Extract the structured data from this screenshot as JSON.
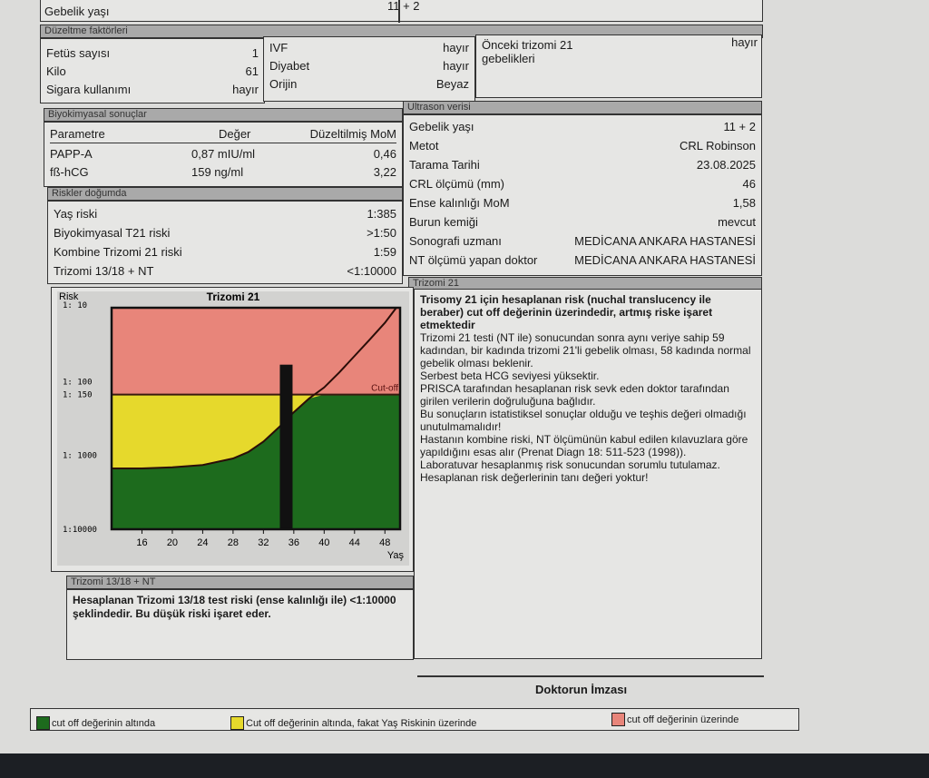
{
  "top": {
    "label": "Gebelik yaşı",
    "value": "11 + 2"
  },
  "factors": {
    "title": "Düzeltme faktörleri",
    "col1": [
      {
        "label": "Fetüs sayısı",
        "value": "1"
      },
      {
        "label": "Kilo",
        "value": "61"
      },
      {
        "label": "Sigara kullanımı",
        "value": "hayır"
      }
    ],
    "col2": [
      {
        "label": "IVF",
        "value": "hayır"
      },
      {
        "label": "Diyabet",
        "value": "hayır"
      },
      {
        "label": "Orijin",
        "value": "Beyaz"
      }
    ],
    "col3": {
      "label": "Önceki trizomi 21 gebelikleri",
      "value": "hayır"
    }
  },
  "biochem": {
    "title": "Biyokimyasal sonuçlar",
    "headers": [
      "Parametre",
      "Değer",
      "Düzeltilmiş MoM"
    ],
    "rows": [
      [
        "PAPP-A",
        "0,87 mIU/ml",
        "0,46"
      ],
      [
        "fß-hCG",
        "159 ng/ml",
        "3,22"
      ]
    ]
  },
  "risks": {
    "title": "Riskler doğumda",
    "rows": [
      {
        "label": "Yaş riski",
        "value": "1:385"
      },
      {
        "label": "Biyokimyasal T21 riski",
        "value": ">1:50"
      },
      {
        "label": "Kombine Trizomi 21 riski",
        "value": "1:59"
      },
      {
        "label": "Trizomi 13/18 + NT",
        "value": "<1:10000"
      }
    ]
  },
  "ultrasound": {
    "title": "Ultrason verisi",
    "rows": [
      {
        "label": "Gebelik yaşı",
        "value": "11 + 2"
      },
      {
        "label": "Metot",
        "value": "CRL Robinson"
      },
      {
        "label": "Tarama Tarihi",
        "value": "23.08.2025"
      },
      {
        "label": "CRL ölçümü (mm)",
        "value": "46"
      },
      {
        "label": "Ense kalınlığı MoM",
        "value": "1,58"
      },
      {
        "label": "Burun kemiği",
        "value": "mevcut"
      },
      {
        "label": "Sonografi uzmanı",
        "value": "MEDİCANA ANKARA HASTANESİ"
      },
      {
        "label": "NT ölçümü yapan doktor",
        "value": "MEDİCANA ANKARA HASTANESİ"
      }
    ]
  },
  "t21": {
    "title": "Trizomi 21",
    "headline": "Trisomy 21 için hesaplanan risk (nuchal translucency ile beraber) cut off değerinin üzerindedir, artmış riske işaret etmektedir",
    "paragraphs": [
      "Trizomi 21 testi (NT ile) sonucundan sonra aynı veriye sahip 59 kadından, bir kadında trizomi 21'li gebelik olması, 58 kadında normal gebelik olması beklenir.",
      "Serbest beta HCG seviyesi yüksektir.",
      "PRISCA tarafından hesaplanan risk sevk eden doktor tarafından girilen verilerin doğruluğuna bağlıdır.",
      "Bu sonuçların istatistiksel sonuçlar olduğu ve teşhis değeri olmadığı unutulmamalıdır!",
      "Hastanın kombine riski, NT ölçümünün kabul edilen kılavuzlara göre yapıldığını esas alır (Prenat Diagn 18: 511-523 (1998)).",
      "Laboratuvar hesaplanmış risk sonucundan sorumlu tutulamaz. Hesaplanan risk değerlerinin tanı değeri yoktur!"
    ]
  },
  "chart_data": {
    "type": "area",
    "title": "Trizomi 21",
    "ylabel": "Risk",
    "xlabel": "Yaş",
    "y_scale": "log",
    "ylim": [
      10,
      10000
    ],
    "xlim": [
      12,
      50
    ],
    "yticks": [
      {
        "label": "1: 10",
        "value": 10
      },
      {
        "label": "1: 100",
        "value": 100
      },
      {
        "label": "1: 150",
        "value": 150
      },
      {
        "label": "1: 1000",
        "value": 1000
      },
      {
        "label": "1:10000",
        "value": 10000
      }
    ],
    "xticks": [
      16,
      20,
      24,
      28,
      32,
      36,
      40,
      44,
      48
    ],
    "cutoff": {
      "label": "Cut-off",
      "value": 150
    },
    "age_risk_curve": {
      "x": [
        12,
        16,
        20,
        24,
        28,
        30,
        32,
        34,
        36,
        38,
        40,
        42,
        44,
        46,
        48,
        49.5
      ],
      "y": [
        1500,
        1500,
        1450,
        1350,
        1100,
        900,
        650,
        420,
        260,
        170,
        120,
        75,
        45,
        27,
        16,
        10
      ]
    },
    "patient": {
      "age": 35,
      "risk": 59
    },
    "colors": {
      "above": "#e8857a",
      "between": "#e6d92c",
      "below": "#1d6b1d"
    }
  },
  "t1318": {
    "title": "Trizomi 13/18 + NT",
    "text": "Hesaplanan Trizomi 13/18 test riski (ense kalınlığı ile) <1:10000 şeklindedir. Bu düşük riski işaret eder."
  },
  "signature": "Doktorun İmzası",
  "legend": [
    {
      "label": "cut off değerinin altında",
      "color": "#1d6b1d"
    },
    {
      "label": "Cut off değerinin altında, fakat Yaş Riskinin üzerinde",
      "color": "#e6d92c"
    },
    {
      "label": "cut off değerinin üzerinde",
      "color": "#e8857a"
    }
  ]
}
